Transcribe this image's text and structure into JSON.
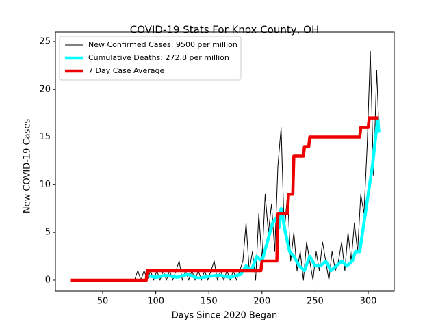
{
  "chart_data": {
    "type": "line",
    "title": "COVID-19 Stats For Knox County, OH",
    "x_label": "Days Since 2020 Began",
    "y_label": "New COVID-19 Cases",
    "xlim": [
      5.5,
      324.5
    ],
    "ylim": [
      -1.15,
      26
    ],
    "xticks": [
      50,
      100,
      150,
      200,
      250,
      300
    ],
    "yticks": [
      0,
      5,
      10,
      15,
      20,
      25
    ],
    "legend": "upper left",
    "series": [
      {
        "name": "New Confirmed Cases: 9500 per million",
        "color": "#000000",
        "width": 1,
        "x": [
          80,
          83,
          86,
          89,
          92,
          95,
          98,
          101,
          104,
          107,
          110,
          113,
          116,
          119,
          122,
          125,
          128,
          131,
          134,
          137,
          140,
          143,
          146,
          149,
          152,
          155,
          158,
          161,
          164,
          167,
          170,
          173,
          176,
          179,
          182,
          185,
          188,
          191,
          194,
          197,
          200,
          203,
          206,
          209,
          212,
          215,
          218,
          221,
          224,
          227,
          230,
          233,
          236,
          239,
          242,
          245,
          248,
          251,
          254,
          257,
          260,
          263,
          266,
          269,
          272,
          275,
          278,
          281,
          284,
          287,
          290,
          293,
          296,
          299,
          302,
          305,
          308,
          310
        ],
        "values": [
          0,
          1,
          0,
          1,
          0,
          1,
          0,
          1,
          0,
          1,
          0,
          1,
          0,
          1,
          2,
          0,
          1,
          0,
          1,
          0,
          1,
          0,
          1,
          0,
          1,
          2,
          0,
          1,
          0,
          1,
          0,
          1,
          0,
          1,
          2,
          6,
          1,
          3,
          0,
          7,
          2,
          9,
          5,
          8,
          3,
          12,
          16,
          5,
          9,
          2,
          5,
          1,
          3,
          0,
          4,
          2,
          0,
          3,
          1,
          4,
          2,
          0,
          3,
          1,
          2,
          4,
          1,
          5,
          2,
          6,
          3,
          9,
          7,
          14,
          24,
          11,
          22,
          16
        ]
      },
      {
        "name": "Cumulative Deaths: 272.8 per million",
        "color": "#00ffff",
        "width": 4.5,
        "x": [
          90,
          100,
          110,
          120,
          130,
          140,
          150,
          160,
          170,
          180,
          185,
          190,
          195,
          200,
          205,
          210,
          213,
          216,
          218,
          222,
          226,
          230,
          235,
          240,
          245,
          250,
          255,
          260,
          265,
          270,
          275,
          280,
          285,
          288,
          292,
          296,
          300,
          304,
          307,
          309,
          310
        ],
        "values": [
          0.5,
          0.3,
          0.5,
          0.3,
          0.6,
          0.2,
          0.4,
          0.5,
          0.3,
          0.6,
          1.5,
          1,
          2.5,
          2,
          4,
          6,
          6.5,
          5.5,
          7.5,
          5,
          3,
          2.5,
          1.5,
          1,
          2.5,
          1.5,
          1.5,
          2,
          1,
          1.5,
          2,
          1.5,
          2,
          3,
          3,
          6,
          9,
          12,
          15,
          17,
          15.5
        ]
      },
      {
        "name": "7 Day Case Average",
        "color": "#ee0000",
        "width": 4.5,
        "x": [
          20,
          91,
          92,
          199,
          200,
          214,
          215,
          224,
          225,
          229,
          230,
          239,
          240,
          244,
          245,
          292,
          293,
          300,
          301,
          310
        ],
        "values": [
          0,
          0,
          1,
          1,
          2,
          2,
          7,
          7,
          9,
          9,
          13,
          13,
          14,
          14,
          15,
          15,
          16,
          16,
          17,
          17
        ]
      }
    ]
  }
}
